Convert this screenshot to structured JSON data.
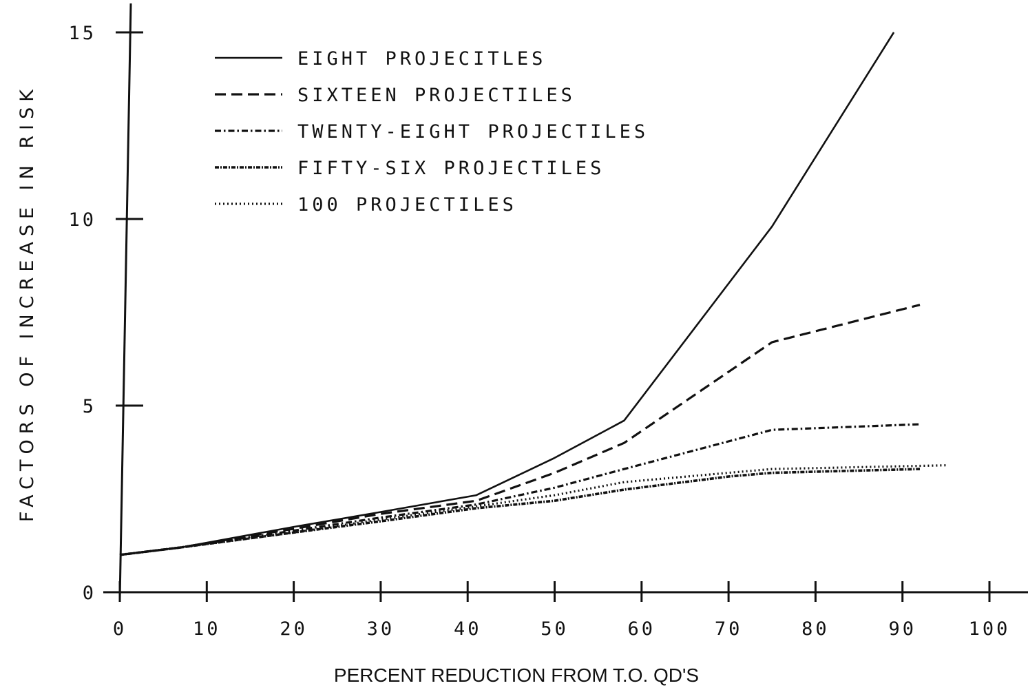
{
  "chart_data": {
    "type": "line",
    "title": "",
    "xlabel": "PERCENT REDUCTION FROM T.O. QD'S",
    "ylabel": "FACTORS OF INCREASE IN RISK",
    "xlim": [
      0,
      100
    ],
    "ylim": [
      0,
      15
    ],
    "x_ticks": [
      "0",
      "10",
      "20",
      "30",
      "40",
      "50",
      "60",
      "70",
      "80",
      "90",
      "100"
    ],
    "y_ticks": [
      "0",
      "5",
      "10",
      "15"
    ],
    "grid": false,
    "legend_position": "top-left",
    "series": [
      {
        "name": "EIGHT PROJECITLES",
        "style": "solid",
        "x": [
          0,
          7,
          20,
          30,
          41,
          50,
          58,
          75,
          89
        ],
        "y": [
          1.0,
          1.2,
          1.75,
          2.15,
          2.6,
          3.6,
          4.6,
          9.8,
          15.0
        ]
      },
      {
        "name": "SIXTEEN PROJECTILES",
        "style": "dashed",
        "x": [
          0,
          7,
          20,
          30,
          41,
          50,
          58,
          75,
          92
        ],
        "y": [
          1.0,
          1.2,
          1.7,
          2.1,
          2.45,
          3.2,
          4.0,
          6.7,
          7.7
        ]
      },
      {
        "name": "TWENTY-EIGHT PROJECTILES",
        "style": "dash-dot",
        "x": [
          0,
          7,
          20,
          30,
          41,
          50,
          58,
          75,
          92
        ],
        "y": [
          1.0,
          1.2,
          1.65,
          2.0,
          2.35,
          2.8,
          3.3,
          4.35,
          4.5
        ]
      },
      {
        "name": "FIFTY-SIX PROJECTILES",
        "style": "dense-dash-dot",
        "x": [
          0,
          7,
          20,
          30,
          41,
          50,
          58,
          70,
          75,
          92
        ],
        "y": [
          1.0,
          1.2,
          1.6,
          1.9,
          2.25,
          2.45,
          2.75,
          3.1,
          3.2,
          3.3
        ]
      },
      {
        "name": "100 PROJECTILES",
        "style": "dotted",
        "x": [
          0,
          7,
          20,
          30,
          41,
          50,
          58,
          70,
          75,
          95
        ],
        "y": [
          1.0,
          1.2,
          1.6,
          1.95,
          2.3,
          2.6,
          2.95,
          3.2,
          3.3,
          3.4
        ]
      }
    ]
  }
}
